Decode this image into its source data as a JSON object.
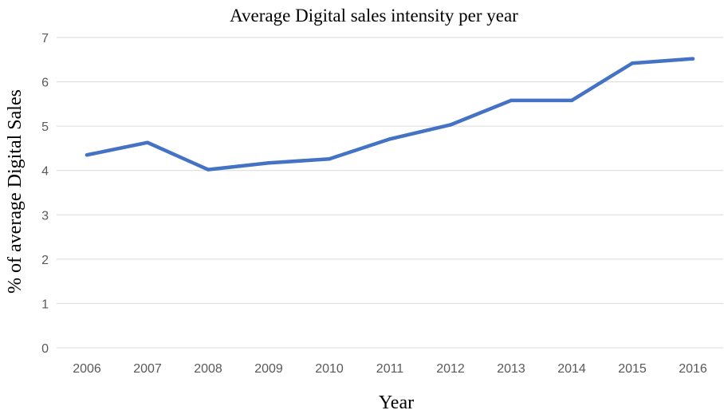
{
  "chart_data": {
    "type": "line",
    "title": "Average Digital sales intensity per year",
    "xlabel": "Year",
    "ylabel": "% of average Digital Sales",
    "categories": [
      "2006",
      "2007",
      "2008",
      "2009",
      "2010",
      "2011",
      "2012",
      "2013",
      "2014",
      "2015",
      "2016"
    ],
    "series": [
      {
        "values": [
          4.35,
          4.63,
          4.02,
          4.17,
          4.26,
          4.71,
          5.03,
          5.58,
          5.58,
          6.42,
          6.52
        ],
        "color": "#4472c4"
      }
    ],
    "ylim": [
      0,
      7
    ],
    "yticks": [
      "0",
      "1",
      "2",
      "3",
      "4",
      "5",
      "6",
      "7"
    ],
    "grid": true,
    "legend": "none"
  }
}
